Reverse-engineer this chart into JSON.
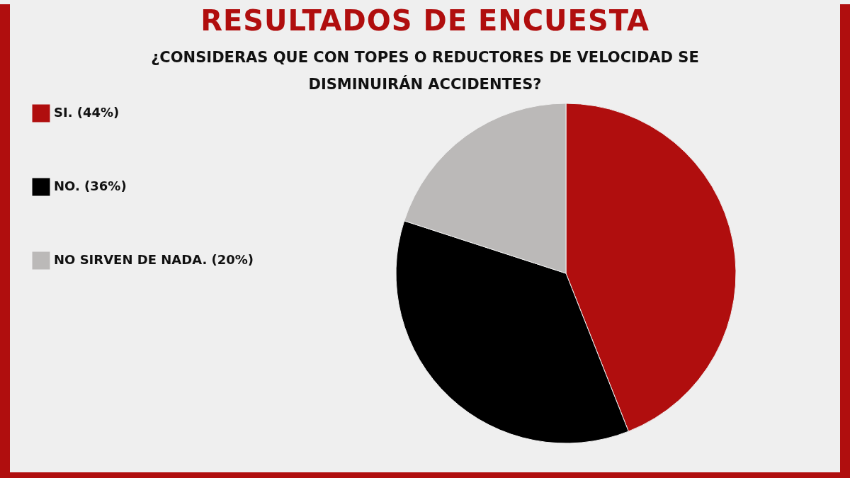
{
  "chart_data": {
    "type": "pie",
    "title": "RESULTADOS DE ENCUESTA",
    "subtitle": "¿CONSIDERAS QUE CON TOPES O REDUCTORES DE VELOCIDAD SE DISMINUIRÁN ACCIDENTES?",
    "categories": [
      "SI. (44%)",
      "NO. (36%)",
      "NO SIRVEN DE NADA. (20%)"
    ],
    "values": [
      44,
      36,
      20
    ],
    "colors": [
      "#b00e0e",
      "#000000",
      "#bbb9b8"
    ],
    "legend": "left"
  }
}
